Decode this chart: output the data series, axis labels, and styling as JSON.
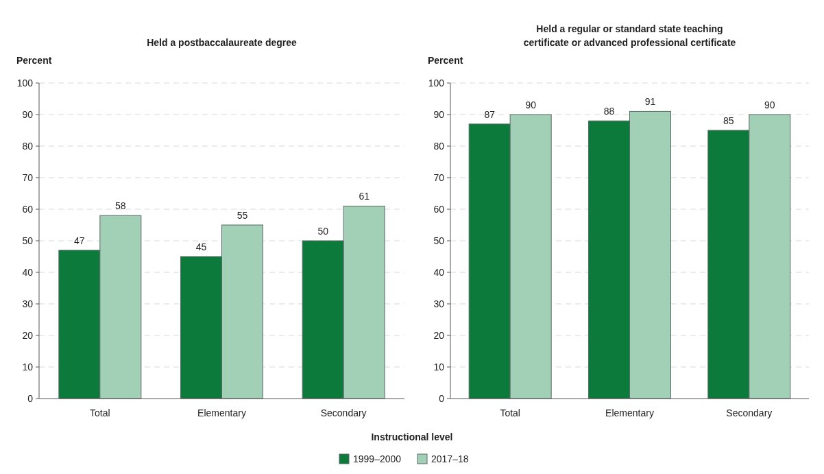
{
  "chart_data": [
    {
      "type": "bar",
      "title": "Held a postbaccalaureate degree",
      "ylabel": "Percent",
      "xlabel": "Instructional level",
      "categories": [
        "Total",
        "Elementary",
        "Secondary"
      ],
      "series": [
        {
          "name": "1999–2000",
          "color": "#0b7a3b",
          "values": [
            47,
            45,
            50
          ]
        },
        {
          "name": "2017–18",
          "color": "#a2d0b6",
          "values": [
            58,
            55,
            61
          ]
        }
      ],
      "ylim": [
        0,
        100
      ],
      "yticks": [
        0,
        10,
        20,
        30,
        40,
        50,
        60,
        70,
        80,
        90,
        100
      ],
      "grid": "y",
      "legend": "bottom",
      "data_labels": true
    },
    {
      "type": "bar",
      "title": "Held a regular or standard state teaching certificate or advanced professional certificate",
      "ylabel": "Percent",
      "categories": [
        "Total",
        "Elementary",
        "Secondary"
      ],
      "series": [
        {
          "color": "#0b7a3b",
          "values": [
            87,
            88,
            85
          ]
        },
        {
          "color": "#a2d0b6",
          "values": [
            90,
            91,
            90
          ]
        }
      ],
      "ylim": [
        0,
        100
      ],
      "yticks": [
        0,
        10,
        20,
        30,
        40,
        50,
        60,
        70,
        80,
        90,
        100
      ],
      "grid": "y",
      "data_labels": true
    }
  ]
}
